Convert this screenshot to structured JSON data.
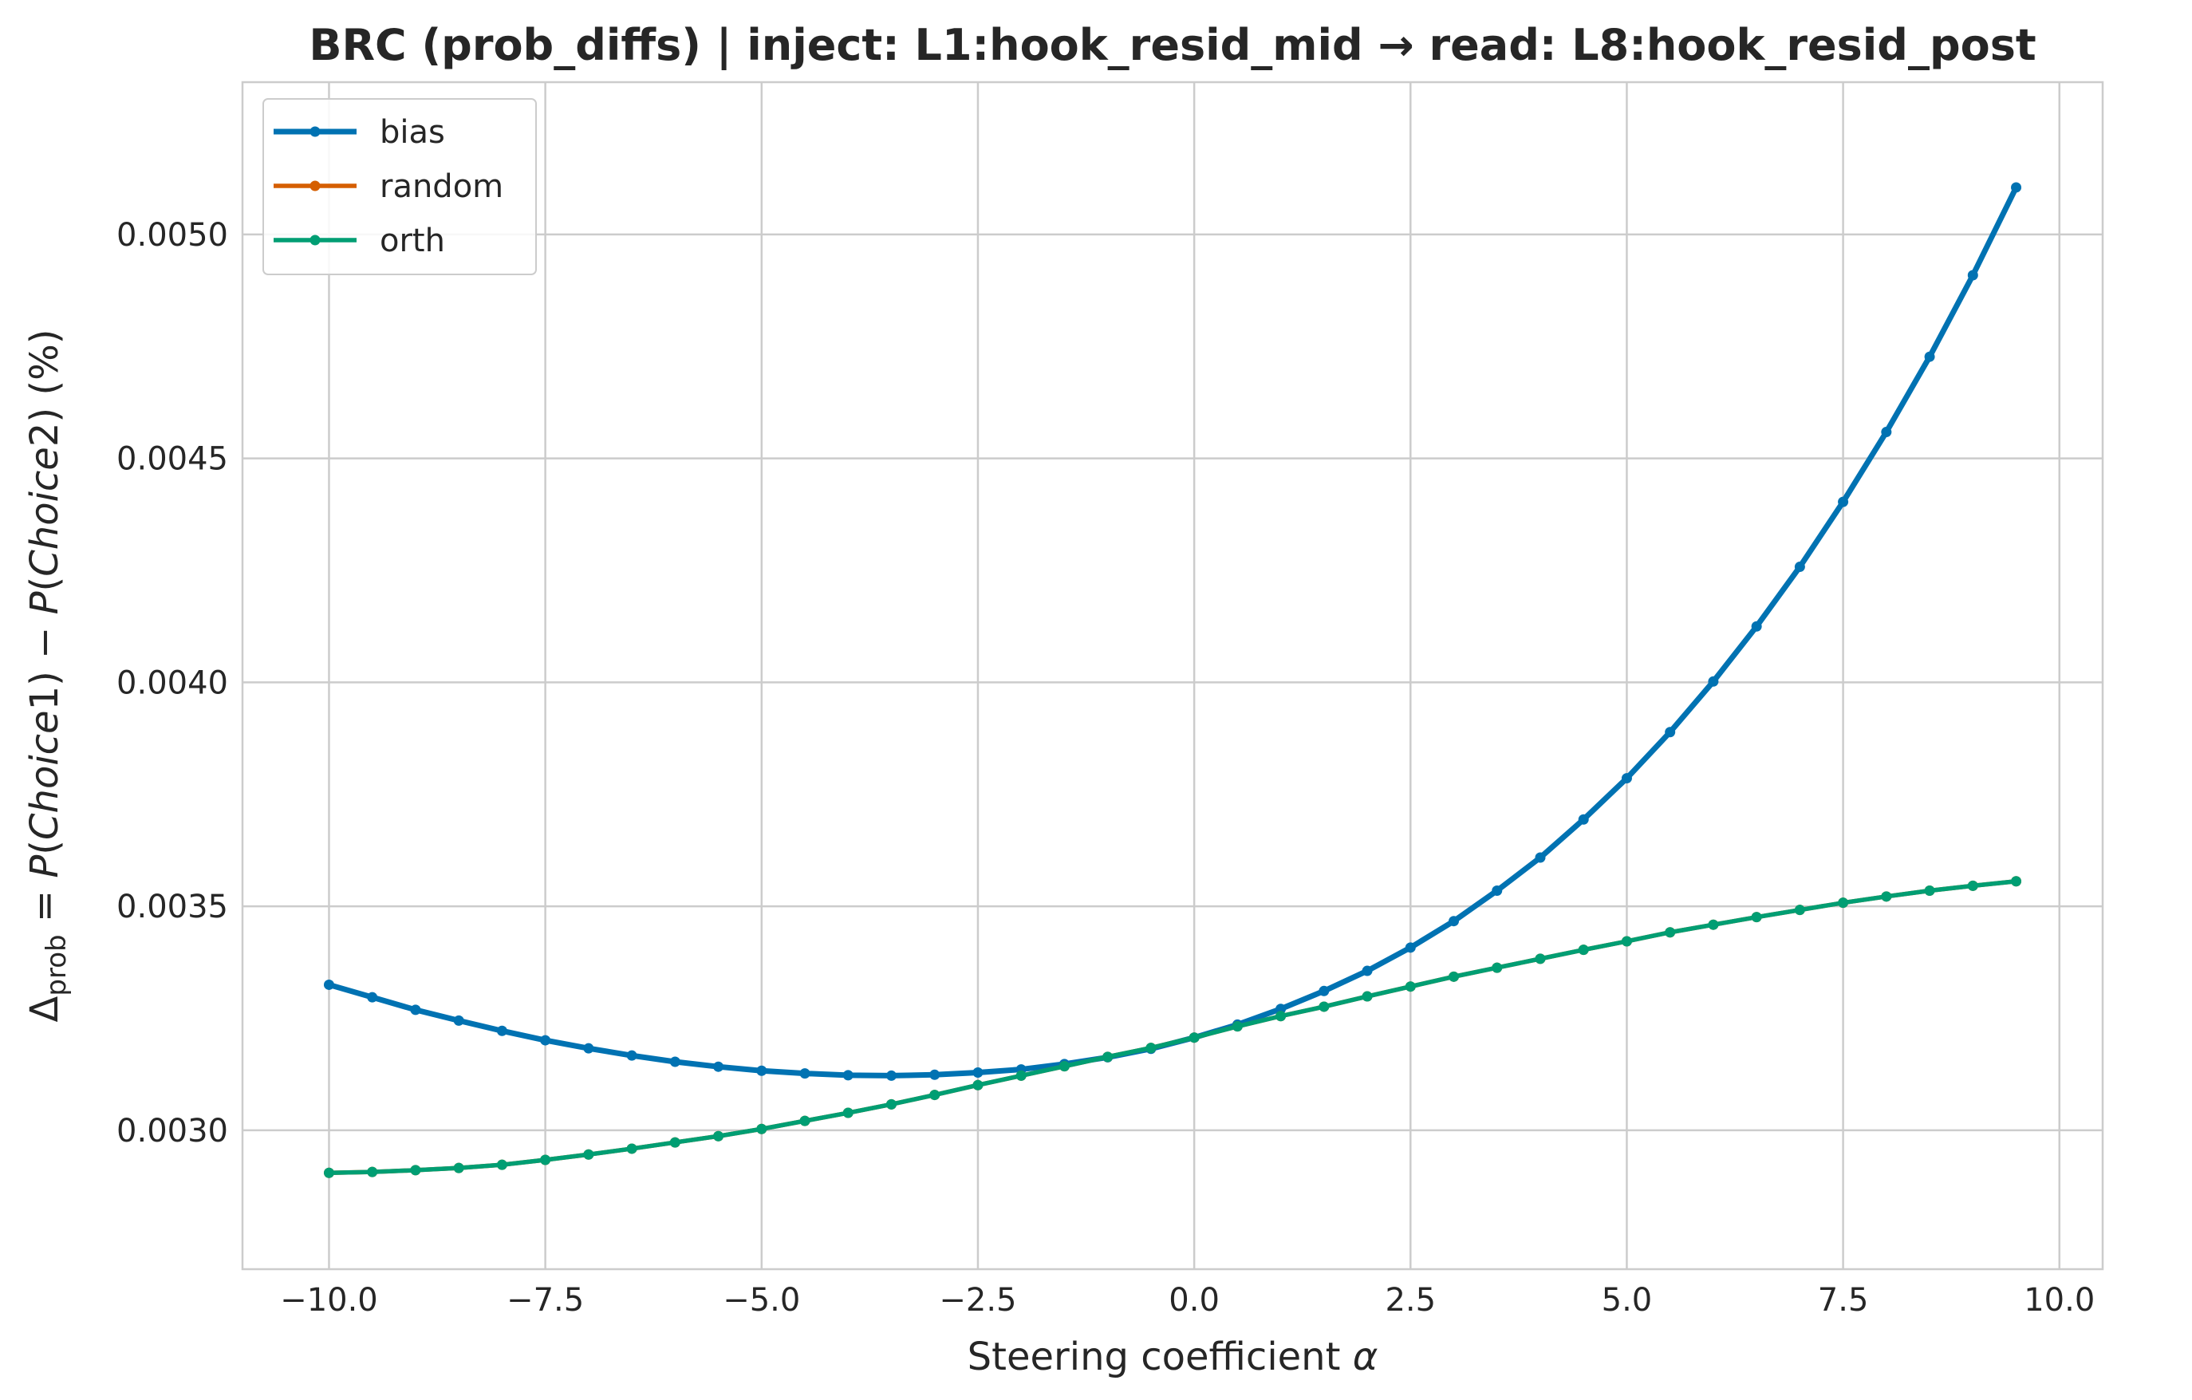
{
  "chart_data": {
    "type": "line",
    "title": "BRC (prob_diffs) | inject: L1:hook_resid_mid → read: L8:hook_resid_post",
    "xlabel": "Steering coefficient α",
    "ylabel": "Δprob = P(Choice1) − P(Choice2) (%)",
    "ylabel_parts": {
      "delta": "Δ",
      "sub": "prob",
      "equals": " = ",
      "p1": "P",
      "open1": "(",
      "choice1": "Choice",
      "num1": "1",
      "close1": ")",
      "minus": " − ",
      "p2": "P",
      "open2": "(",
      "choice2": "Choice",
      "num2": "2",
      "close2": ")",
      "unit": " (%)"
    },
    "xlabel_parts": {
      "text": "Steering coefficient ",
      "symbol": "α"
    },
    "xlim": [
      -11.0,
      10.5
    ],
    "ylim": [
      0.00269,
      0.00534
    ],
    "xticks": [
      -10.0,
      -7.5,
      -5.0,
      -2.5,
      0.0,
      2.5,
      5.0,
      7.5,
      10.0
    ],
    "xtick_labels": [
      "−10.0",
      "−7.5",
      "−5.0",
      "−2.5",
      "0.0",
      "2.5",
      "5.0",
      "7.5",
      "10.0"
    ],
    "yticks": [
      0.003,
      0.0035,
      0.004,
      0.0045,
      0.005
    ],
    "ytick_labels": [
      "0.0030",
      "0.0035",
      "0.0040",
      "0.0045",
      "0.0050"
    ],
    "grid": true,
    "legend_position": "top-left",
    "x": [
      -10.0,
      -9.5,
      -9.0,
      -8.5,
      -8.0,
      -7.5,
      -7.0,
      -6.5,
      -6.0,
      -5.5,
      -5.0,
      -4.5,
      -4.0,
      -3.5,
      -3.0,
      -2.5,
      -2.0,
      -1.5,
      -1.0,
      -0.5,
      0.0,
      0.5,
      1.0,
      1.5,
      2.0,
      2.5,
      3.0,
      3.5,
      4.0,
      4.5,
      5.0,
      5.5,
      6.0,
      6.5,
      7.0,
      7.5,
      8.0,
      8.5,
      9.0,
      9.5
    ],
    "series": [
      {
        "name": "bias",
        "color": "#0072b2",
        "values": [
          0.003325,
          0.003297,
          0.003269,
          0.003245,
          0.003222,
          0.003201,
          0.003183,
          0.003167,
          0.003153,
          0.003142,
          0.003133,
          0.003127,
          0.003123,
          0.003122,
          0.003124,
          0.003129,
          0.003136,
          0.003148,
          0.003163,
          0.003182,
          0.003207,
          0.003236,
          0.003271,
          0.003311,
          0.003356,
          0.003408,
          0.003467,
          0.003535,
          0.003609,
          0.003694,
          0.003786,
          0.003889,
          0.004002,
          0.004125,
          0.004258,
          0.004403,
          0.004559,
          0.004727,
          0.004909,
          0.005105
        ]
      },
      {
        "name": "random",
        "color": "#d55e00",
        "values": [
          0.002905,
          0.002907,
          0.002911,
          0.002916,
          0.002923,
          0.002934,
          0.002946,
          0.002959,
          0.002973,
          0.002987,
          0.003003,
          0.003021,
          0.003039,
          0.003058,
          0.003079,
          0.003101,
          0.003122,
          0.003143,
          0.003164,
          0.003184,
          0.003207,
          0.003232,
          0.003255,
          0.003276,
          0.003299,
          0.003321,
          0.003343,
          0.003363,
          0.003383,
          0.003403,
          0.003422,
          0.003442,
          0.003459,
          0.003476,
          0.003492,
          0.003508,
          0.003522,
          0.003535,
          0.003546,
          0.003556
        ]
      },
      {
        "name": "orth",
        "color": "#009e73",
        "values": [
          0.002905,
          0.002907,
          0.002911,
          0.002916,
          0.002923,
          0.002934,
          0.002946,
          0.002959,
          0.002973,
          0.002987,
          0.003003,
          0.003021,
          0.003039,
          0.003058,
          0.003079,
          0.003101,
          0.003122,
          0.003143,
          0.003164,
          0.003184,
          0.003207,
          0.003232,
          0.003255,
          0.003276,
          0.003299,
          0.003321,
          0.003343,
          0.003363,
          0.003383,
          0.003403,
          0.003422,
          0.003442,
          0.003459,
          0.003476,
          0.003492,
          0.003508,
          0.003522,
          0.003535,
          0.003546,
          0.003556
        ]
      }
    ]
  }
}
